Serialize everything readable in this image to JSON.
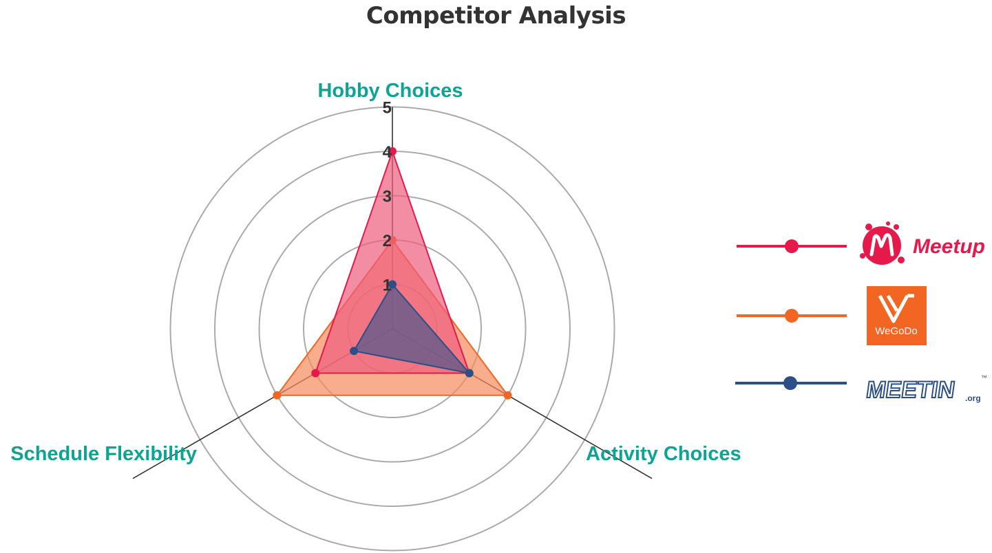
{
  "chart_data": {
    "type": "radar",
    "title": "Competitor Analysis",
    "axes": [
      "Hobby Choices",
      "Activity Choices",
      "Schedule Flexibility"
    ],
    "range": [
      0,
      5
    ],
    "ticks": [
      "1",
      "2",
      "3",
      "4",
      "5"
    ],
    "series": [
      {
        "name": "Meetup",
        "values": [
          4,
          2,
          2
        ],
        "color": "#e6194b",
        "fill": "#ee5d7d"
      },
      {
        "name": "WeGoDo",
        "values": [
          2,
          3,
          3
        ],
        "color": "#f26522",
        "fill": "#f58a5c"
      },
      {
        "name": "MEETIN.org",
        "values": [
          1,
          2,
          1
        ],
        "color": "#2b4f86",
        "fill": "#5a5a8a"
      }
    ]
  },
  "legend": {
    "meetup_text": "Meetup",
    "wegodo_text": "WeGoDo",
    "meetin_text": "MEETIN",
    "meetin_sub": ".org",
    "meetin_tm": "™"
  },
  "colors": {
    "axis_label": "#0fa393",
    "grid": "#aaaaaa",
    "axis_line": "#333333"
  }
}
